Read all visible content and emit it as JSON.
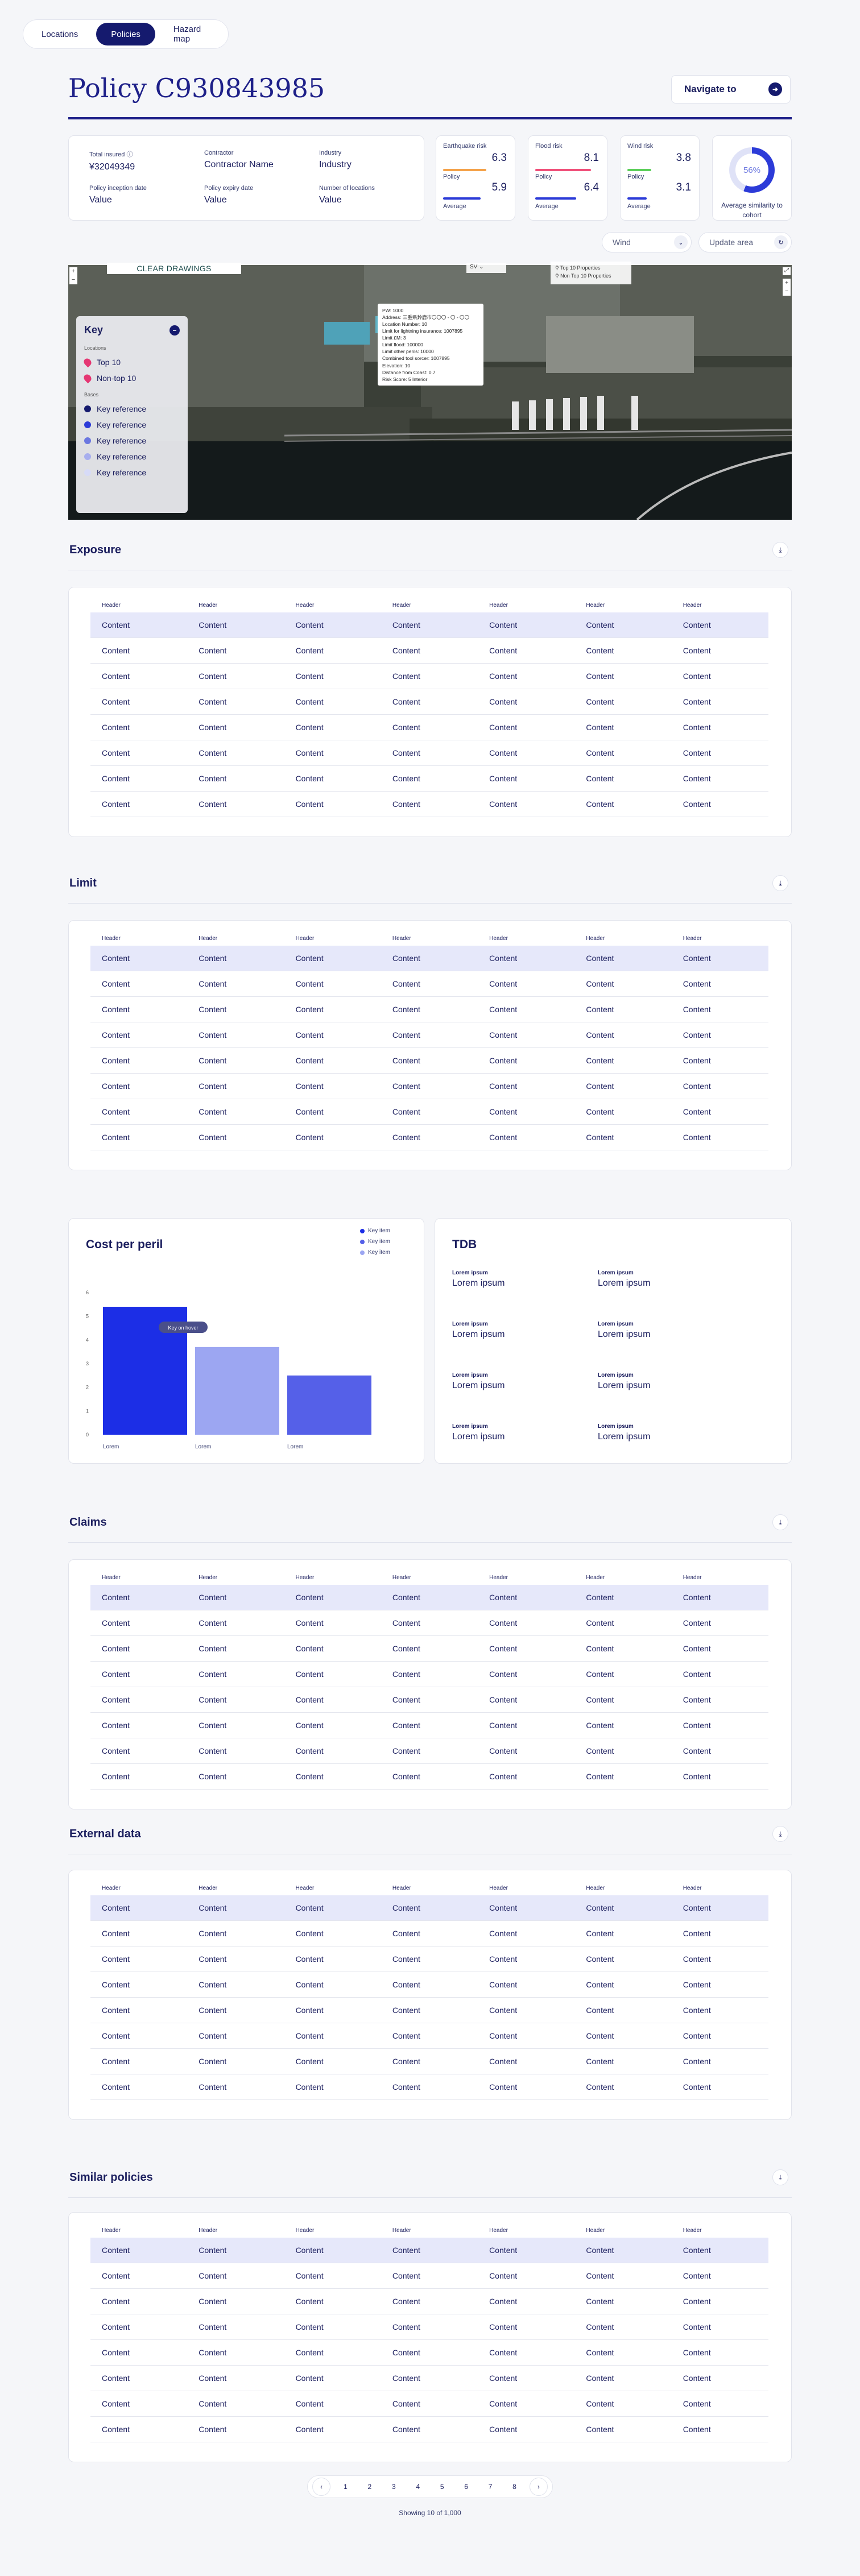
{
  "nav": {
    "tabs": [
      "Locations",
      "Policies",
      "Hazard map"
    ],
    "active": 1
  },
  "header": {
    "title": "Policy",
    "policy_id": "C930843985",
    "navigate_label": "Navigate to"
  },
  "info": {
    "total_insured_label": "Total insured",
    "total_insured": "¥32049349",
    "contractor_label": "Contractor",
    "contractor": "Contractor Name",
    "industry_label": "Industry",
    "industry": "Industry",
    "inception_label": "Policy inception date",
    "inception": "Value",
    "expiry_label": "Policy expiry date",
    "expiry": "Value",
    "locations_label": "Number of locations",
    "locations": "Value"
  },
  "risks": [
    {
      "label": "Earthquake risk",
      "value": "6.3",
      "policy_label": "Policy",
      "policy_value": "5.9",
      "avg_label": "Average",
      "color": "#f4a24a"
    },
    {
      "label": "Flood risk",
      "value": "8.1",
      "policy_label": "Policy",
      "policy_value": "6.4",
      "avg_label": "Average",
      "color": "#f0507a"
    },
    {
      "label": "Wind risk",
      "value": "3.8",
      "policy_label": "Policy",
      "policy_value": "3.1",
      "avg_label": "Average",
      "color": "#5ccf5a"
    }
  ],
  "similarity": {
    "percent": "56%",
    "label": "Average similarity to cohort",
    "fraction": 0.56
  },
  "controls": {
    "peril": "Wind",
    "update": "Update area"
  },
  "map": {
    "clear": "CLEAR DRAWINGS",
    "dropdown": "SV",
    "legend": [
      "Top 10 Properties",
      "Non Top 10 Properties"
    ],
    "key": {
      "title": "Key",
      "group1": "Locations",
      "top10": "Top 10",
      "nontop10": "Non-top 10",
      "group2": "Bases",
      "refs": [
        "Key reference",
        "Key reference",
        "Key reference",
        "Key reference",
        "Key reference"
      ]
    },
    "popup": [
      "PW: 1000",
      "Address: 三重県鈴鹿市〇〇〇 - 〇 - 〇〇",
      "Location Number: 10",
      "Limit for lightning insurance: 1007895",
      "Limit £M: 3",
      "Limit flood: 100000",
      "Limit other perils: 10000",
      "Combined tool sorcer: 1007895",
      "Elevation: 10",
      "Distance from Coast: 0.7",
      "Risk Score: 5 Interior"
    ]
  },
  "sections": {
    "exposure": "Exposure",
    "limit": "Limit",
    "claims": "Claims",
    "external": "External data",
    "similar": "Similar policies"
  },
  "table": {
    "headers": [
      "Header",
      "Header",
      "Header",
      "Header",
      "Header",
      "Header",
      "Header"
    ],
    "rows": [
      [
        "Content",
        "Content",
        "Content",
        "Content",
        "Content",
        "Content",
        "Content"
      ],
      [
        "Content",
        "Content",
        "Content",
        "Content",
        "Content",
        "Content",
        "Content"
      ],
      [
        "Content",
        "Content",
        "Content",
        "Content",
        "Content",
        "Content",
        "Content"
      ],
      [
        "Content",
        "Content",
        "Content",
        "Content",
        "Content",
        "Content",
        "Content"
      ],
      [
        "Content",
        "Content",
        "Content",
        "Content",
        "Content",
        "Content",
        "Content"
      ],
      [
        "Content",
        "Content",
        "Content",
        "Content",
        "Content",
        "Content",
        "Content"
      ],
      [
        "Content",
        "Content",
        "Content",
        "Content",
        "Content",
        "Content",
        "Content"
      ],
      [
        "Content",
        "Content",
        "Content",
        "Content",
        "Content",
        "Content",
        "Content"
      ]
    ]
  },
  "chart_data": {
    "type": "bar",
    "title": "Cost per peril",
    "categories": [
      "Lorem",
      "Lorem",
      "Lorem"
    ],
    "values": [
      5.4,
      3.7,
      2.5
    ],
    "colors": [
      "#1c2ee6",
      "#9ca6f2",
      "#5560e8"
    ],
    "ylim": [
      0,
      6
    ],
    "yticks": [
      "0",
      "1",
      "2",
      "3",
      "4",
      "5",
      "6"
    ],
    "legend": [
      "Key item",
      "Key item",
      "Key item"
    ],
    "tooltip": "Key on hover"
  },
  "tdb": {
    "title": "TDB",
    "items": [
      {
        "label": "Lorem ipsum",
        "value": "Lorem ipsum"
      },
      {
        "label": "Lorem ipsum",
        "value": "Lorem ipsum"
      },
      {
        "label": "Lorem ipsum",
        "value": "Lorem ipsum"
      },
      {
        "label": "Lorem ipsum",
        "value": "Lorem ipsum"
      },
      {
        "label": "Lorem ipsum",
        "value": "Lorem ipsum"
      },
      {
        "label": "Lorem ipsum",
        "value": "Lorem ipsum"
      },
      {
        "label": "Lorem ipsum",
        "value": "Lorem ipsum"
      },
      {
        "label": "Lorem ipsum",
        "value": "Lorem ipsum"
      }
    ]
  },
  "pagination": {
    "pages": [
      "1",
      "2",
      "3",
      "4",
      "5",
      "6",
      "7",
      "8"
    ],
    "current": "1",
    "showing": "Showing 10 of 1,000"
  }
}
